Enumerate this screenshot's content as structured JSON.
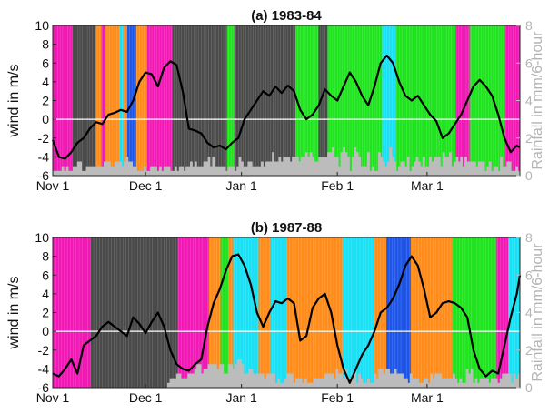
{
  "chart_data": [
    {
      "type": "line",
      "title": "(a) 1983-84",
      "ylabel": "wind in m/s",
      "y2label": "Rainfall in mm/6-hour",
      "ylim": [
        -6,
        10
      ],
      "y2lim": [
        0,
        8
      ],
      "yticks": [
        "10",
        "8",
        "6",
        "4",
        "2",
        "0",
        "-2",
        "-4",
        "-6"
      ],
      "y2ticks": [
        "8",
        "6",
        "4",
        "2",
        "0"
      ],
      "xlim_days": [
        0,
        151
      ],
      "xticks": [
        {
          "label": "Nov 1",
          "day": 0
        },
        {
          "label": "Dec 1",
          "day": 30
        },
        {
          "label": "Jan 1",
          "day": 61
        },
        {
          "label": "Feb 1",
          "day": 92
        },
        {
          "label": "Mar 1",
          "day": 121
        }
      ],
      "regime_colors": {
        "D": "#4a4a4a",
        "M": "#f218b5",
        "O": "#ff8c1a",
        "C": "#18e0f5",
        "B": "#1c55e8",
        "G": "#1ee41e"
      },
      "regimes": "MMMMMMMMMMMMMMMMMMMMMMMMDDDDDDDDDDDDDDDDDDDDDDDDDDDDOOOOOOOMMMMMOOOOOOOOOOOOOOOOOCCCCCOOOOBBBBBBBBBBBOOOOOOOOOOOOOMMMMMMMMMMMMMMMMMMMMMMMMMMMMMMMDDDDDDDDDDDDDDDDDDDDDDDDDDDDDDDDDDDDDDDDDDDDDDDDDDDDDDDDDDDDDDDDDDGGGGGGGGGDDDDDDDDDDDDDDDDDDDDDDDDDDDDDDDDDDDDDDDDDDDDDDDDDDDDDDDDDDDDDDDDDDDDDDDDDDGGGGGGGGGGGGGGGGGGGGGGGGGGGGDDDDDDDDDDDGGGGGGGGGGGGGGGGGGGGGGGGGGGGGGGGGGGGGGGGGGGGGGGGGGGGGGGGGGGGGGGGGGCCCCCCCCCCCCCCCCCGGGGGGGGGGGGGGGGGGGGGGGGGGGGGGGGGGGGGGGGGGGGGGGGGGGGGGGGGGGGGGGGGGGGGGGGMMMMMMMMMMMMMMMMMGGGGGGGGGGGGGGGGGGGGGGGGGGGGGGGGGGGGGGGGGGGMMMMMMMMMMMMMMMMMM",
      "wind_days": [
        0,
        2,
        4,
        6,
        8,
        10,
        12,
        14,
        16,
        18,
        20,
        22,
        24,
        26,
        28,
        30,
        32,
        34,
        36,
        38,
        40,
        42,
        44,
        46,
        48,
        50,
        52,
        54,
        56,
        58,
        60,
        62,
        64,
        66,
        68,
        70,
        72,
        74,
        76,
        78,
        80,
        82,
        84,
        86,
        88,
        90,
        92,
        94,
        96,
        98,
        100,
        102,
        104,
        106,
        108,
        110,
        112,
        114,
        116,
        118,
        120,
        122,
        124,
        126,
        128,
        130,
        132,
        134,
        136,
        138,
        140,
        142,
        144,
        146,
        148,
        150,
        151
      ],
      "wind": [
        -2.2,
        -4.0,
        -4.2,
        -3.5,
        -2.5,
        -2.0,
        -1.0,
        -0.3,
        -0.5,
        0.5,
        0.7,
        1.0,
        0.8,
        2.0,
        4.0,
        5.0,
        4.8,
        3.5,
        5.5,
        6.2,
        5.8,
        3.0,
        -1.0,
        -1.2,
        -1.5,
        -2.5,
        -3.0,
        -2.8,
        -3.2,
        -2.5,
        -2.0,
        0.0,
        1.0,
        2.0,
        3.0,
        2.5,
        3.5,
        2.8,
        3.6,
        3.0,
        1.0,
        0.0,
        0.5,
        1.5,
        3.2,
        2.5,
        2.0,
        3.5,
        5.0,
        4.0,
        2.5,
        1.5,
        3.5,
        6.0,
        6.8,
        6.0,
        4.0,
        2.5,
        2.0,
        2.5,
        1.5,
        0.5,
        -0.2,
        -2.0,
        -1.5,
        -0.5,
        0.5,
        2.0,
        3.5,
        4.2,
        3.5,
        2.5,
        0.5,
        -2.0,
        -3.5,
        -2.8,
        -3.0
      ],
      "rain": "1111212112233112222222233322333234332211121122212122211212212232322233424222221222124322332222323335334344434443445454334444556442565414654222512115432364312332412343242243444254452343424333323331231221422331121"
    },
    {
      "type": "line",
      "title": "(b) 1987-88",
      "ylabel": "wind in m/s",
      "y2label": "Rainfall in mm/6-hour",
      "ylim": [
        -6,
        10
      ],
      "y2lim": [
        0,
        8
      ],
      "yticks": [
        "10",
        "8",
        "6",
        "4",
        "2",
        "0",
        "-2",
        "-4",
        "-6"
      ],
      "y2ticks": [
        "8",
        "6",
        "4",
        "2",
        "0"
      ],
      "xlim_days": [
        0,
        151
      ],
      "xticks": [
        {
          "label": "Nov 1",
          "day": 0
        },
        {
          "label": "Dec 1",
          "day": 30
        },
        {
          "label": "Jan 1",
          "day": 61
        },
        {
          "label": "Feb 1",
          "day": 92
        },
        {
          "label": "Mar 1",
          "day": 121
        }
      ],
      "regime_colors": {
        "D": "#4a4a4a",
        "M": "#f218b5",
        "O": "#ff8c1a",
        "C": "#18e0f5",
        "B": "#1c55e8",
        "G": "#1ee41e"
      },
      "regimes": "MMMMMMMMMMMMMMMMMMMMMMMMMMMMMMMMMMMMMMMDDDDDDDDDDDDDDDDDDDDDDDDDDDDDDDDDDDDDDDDDDDDDDDDDDDDDDDDDDDDDDDDDDDDDDDDDDDDDDDDDDDDDDDDDMMMMMMMMMMMMMMMMMMMMMMMMMMMMMMMMOOOOOOOOOOOOGGGGGGGGOOOOOCCCCCCCCCCCCCCCCCCCCCCCCCCOOOOOOOOOOOOCCCCCCCCCCCCCCCCCOOOOOOOOOOOOOOOOOOOOOOOOOOOOOOOOOOOOOOOOOOOOOOOOOOOOOOOOOCCCCCCCCCCCCCCCCCCCCCCCCCCCCCCCCCOOOOOOOOOOOOBBBBBBBBBBBBBBBBBBBBBBBBBOOOOOOOOOOOOOOOOOOOOOOOOOOOOOOOOOOOOOOOOOOOGGGGGGGGGGGGGGGGGGGGGGGGGGGGGGGGGGGGGGGGGGGGGMMMMMMMMMMMMCCCCCCCCCCCC",
      "wind_days": [
        0,
        2,
        4,
        6,
        8,
        10,
        12,
        14,
        16,
        18,
        20,
        22,
        24,
        26,
        28,
        30,
        32,
        34,
        36,
        38,
        40,
        42,
        44,
        46,
        48,
        50,
        52,
        54,
        56,
        58,
        60,
        62,
        64,
        66,
        68,
        70,
        72,
        74,
        76,
        78,
        80,
        82,
        84,
        86,
        88,
        90,
        92,
        94,
        96,
        98,
        100,
        102,
        104,
        106,
        108,
        110,
        112,
        114,
        116,
        118,
        120,
        122,
        124,
        126,
        128,
        130,
        132,
        134,
        136,
        138,
        140,
        142,
        144,
        146,
        148,
        150,
        151
      ],
      "wind": [
        -4.5,
        -4.8,
        -4.0,
        -3.0,
        -4.5,
        -1.5,
        -1.0,
        -0.5,
        0.5,
        1.0,
        0.5,
        0.0,
        -0.5,
        1.5,
        0.8,
        -0.2,
        1.0,
        2.0,
        0.5,
        -2.0,
        -3.5,
        -4.0,
        -4.2,
        -3.5,
        -3.0,
        0.5,
        3.0,
        4.5,
        6.5,
        8.0,
        8.2,
        7.0,
        5.0,
        2.0,
        0.5,
        2.0,
        3.2,
        3.0,
        3.5,
        3.0,
        -1.0,
        -0.5,
        2.5,
        3.5,
        4.0,
        2.0,
        -1.5,
        -4.0,
        -5.5,
        -4.0,
        -2.5,
        -1.5,
        0.0,
        2.0,
        2.5,
        3.5,
        5.0,
        7.0,
        8.0,
        7.0,
        4.5,
        1.5,
        2.0,
        3.0,
        3.2,
        3.0,
        2.5,
        1.5,
        -2.0,
        -4.0,
        -4.8,
        -4.2,
        -4.5,
        -1.5,
        1.5,
        4.0,
        6.0
      ],
      "rain": "0000000000000000000000000000000000000000000000000001222332223334553445555455335545665334433333233331211233312221211122222333324332422341321121132443443343332213222112213233322222321211434121222212221233331323"
    }
  ]
}
